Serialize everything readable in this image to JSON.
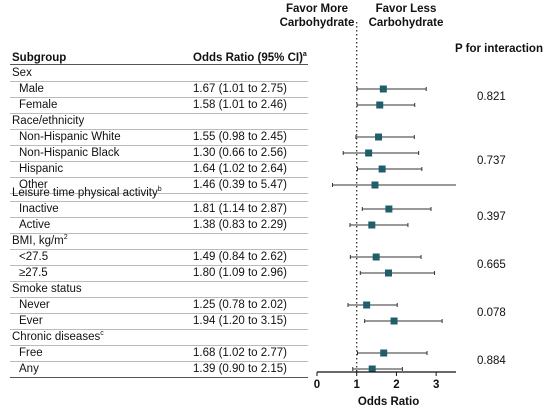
{
  "header": {
    "subgroup": "Subgroup",
    "odds_ratio": "Odds Ratio (95% CI)",
    "odds_ratio_sup": "a",
    "favor_more": [
      "Favor More",
      "Carbohydrate"
    ],
    "favor_less": [
      "Favor Less",
      "Carbohydrate"
    ],
    "p_interaction": "P for interaction"
  },
  "groups": [
    {
      "label": "Sex",
      "sup": "",
      "p": "0.821"
    },
    {
      "label": "Race/ethnicity",
      "sup": "",
      "p": "0.737"
    },
    {
      "label": "Leisure time physical activity",
      "sup": "b",
      "p": "0.397"
    },
    {
      "label": "BMI, kg/m",
      "sup": "2",
      "p": "0.665"
    },
    {
      "label": "Smoke status",
      "sup": "",
      "p": "0.078"
    },
    {
      "label": "Chronic diseases",
      "sup": "c",
      "p": "0.884"
    }
  ],
  "rows": [
    {
      "label": "Male",
      "ci": "1.67 (1.01 to 2.75)"
    },
    {
      "label": "Female",
      "ci": "1.58 (1.01 to 2.46)"
    },
    {
      "label": "Non-Hispanic White",
      "ci": "1.55 (0.98 to 2.45)"
    },
    {
      "label": "Non-Hispanic Black",
      "ci": "1.30 (0.66 to 2.56)"
    },
    {
      "label": "Hispanic",
      "ci": "1.64 (1.02 to 2.64)"
    },
    {
      "label": "Other",
      "ci": "1.46 (0.39 to 5.47)"
    },
    {
      "label": "Inactive",
      "ci": "1.81 (1.14 to 2.87)"
    },
    {
      "label": "Active",
      "ci": "1.38 (0.83 to 2.29)"
    },
    {
      "label": "<27.5",
      "ci": "1.49 (0.84 to 2.62)"
    },
    {
      "label": "≥27.5",
      "ci": "1.80 (1.09 to 2.96)"
    },
    {
      "label": "Never",
      "ci": "1.25 (0.78 to 2.02)"
    },
    {
      "label": "Ever",
      "ci": "1.94 (1.20 to 3.15)"
    },
    {
      "label": "Free",
      "ci": "1.68 (1.02 to 2.77)"
    },
    {
      "label": "Any",
      "ci": "1.39 (0.90 to 2.15)"
    }
  ],
  "chart_data": {
    "type": "scatter",
    "subtype": "forest",
    "xlabel": "Odds Ratio",
    "xlim": [
      0,
      3.5
    ],
    "xticks": [
      0,
      1,
      2,
      3
    ],
    "reference_line": 1,
    "marker_color": "#1f5f6b",
    "points": [
      {
        "label": "Male",
        "or": 1.67,
        "lo": 1.01,
        "hi": 2.75
      },
      {
        "label": "Female",
        "or": 1.58,
        "lo": 1.01,
        "hi": 2.46
      },
      {
        "label": "Non-Hispanic White",
        "or": 1.55,
        "lo": 0.98,
        "hi": 2.45
      },
      {
        "label": "Non-Hispanic Black",
        "or": 1.3,
        "lo": 0.66,
        "hi": 2.56
      },
      {
        "label": "Hispanic",
        "or": 1.64,
        "lo": 1.02,
        "hi": 2.64
      },
      {
        "label": "Other",
        "or": 1.46,
        "lo": 0.39,
        "hi": 5.47
      },
      {
        "label": "Inactive",
        "or": 1.81,
        "lo": 1.14,
        "hi": 2.87
      },
      {
        "label": "Active",
        "or": 1.38,
        "lo": 0.83,
        "hi": 2.29
      },
      {
        "label": "<27.5",
        "or": 1.49,
        "lo": 0.84,
        "hi": 2.62
      },
      {
        "label": "≥27.5",
        "or": 1.8,
        "lo": 1.09,
        "hi": 2.96
      },
      {
        "label": "Never",
        "or": 1.25,
        "lo": 0.78,
        "hi": 2.02
      },
      {
        "label": "Ever",
        "or": 1.94,
        "lo": 1.2,
        "hi": 3.15
      },
      {
        "label": "Free",
        "or": 1.68,
        "lo": 1.02,
        "hi": 2.77
      },
      {
        "label": "Any",
        "or": 1.39,
        "lo": 0.9,
        "hi": 2.15
      }
    ]
  }
}
